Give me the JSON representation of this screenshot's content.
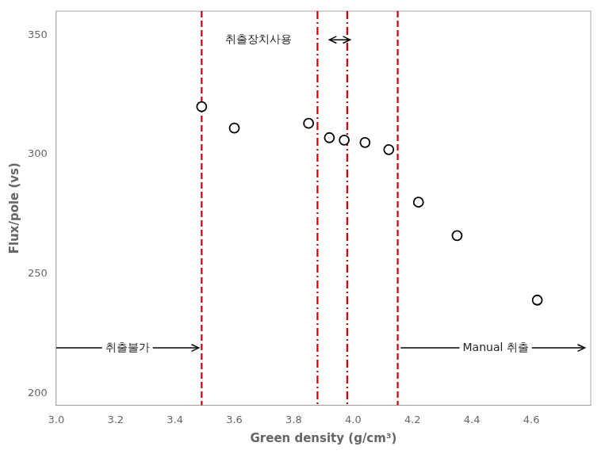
{
  "chart_data": {
    "type": "scatter",
    "x": [
      3.49,
      3.6,
      3.85,
      3.92,
      3.97,
      4.04,
      4.12,
      4.22,
      4.35,
      4.62
    ],
    "values": [
      320,
      311,
      313,
      307,
      306,
      305,
      302,
      280,
      266,
      239
    ],
    "color": "#000000",
    "marker": "circle",
    "xlabel": "Green density (g/cm³)",
    "ylabel": "Flux/pole (vs)",
    "xlim": [
      3.0,
      4.8
    ],
    "ylim": [
      195,
      360
    ],
    "xticks": [
      {
        "value": 3.0,
        "label": "3.0"
      },
      3.2,
      3.4,
      3.6,
      3.8,
      {
        "value": 4.0,
        "label": "4.0"
      },
      4.2,
      4.4,
      4.6
    ],
    "yticks": [
      200,
      250,
      300,
      350
    ],
    "grid": false,
    "vlines": [
      {
        "x": 3.49,
        "color": "#cc0000",
        "line_style": "dashed"
      },
      {
        "x": 3.88,
        "color": "#cc0000",
        "line_style": "dashdot"
      },
      {
        "x": 3.98,
        "color": "#cc0000",
        "line_style": "dashdot"
      },
      {
        "x": 4.15,
        "color": "#cc0000",
        "line_style": "dashed"
      }
    ],
    "arrows": [
      {
        "x": [
          3.0,
          3.48
        ],
        "y": 219,
        "marker": "arrow"
      },
      {
        "x": [
          3.92,
          3.99
        ],
        "y": 348,
        "marker": "double_arrow"
      },
      {
        "x": [
          4.16,
          4.78
        ],
        "y": 219,
        "marker": "arrow"
      }
    ],
    "annotations": [
      {
        "text": "취출불가",
        "x": 3.24,
        "y": 219
      },
      {
        "text": "취출장치사용",
        "x": 3.68,
        "y": 348
      },
      {
        "text": "Manual 취출",
        "x": 4.48,
        "y": 219
      }
    ]
  }
}
